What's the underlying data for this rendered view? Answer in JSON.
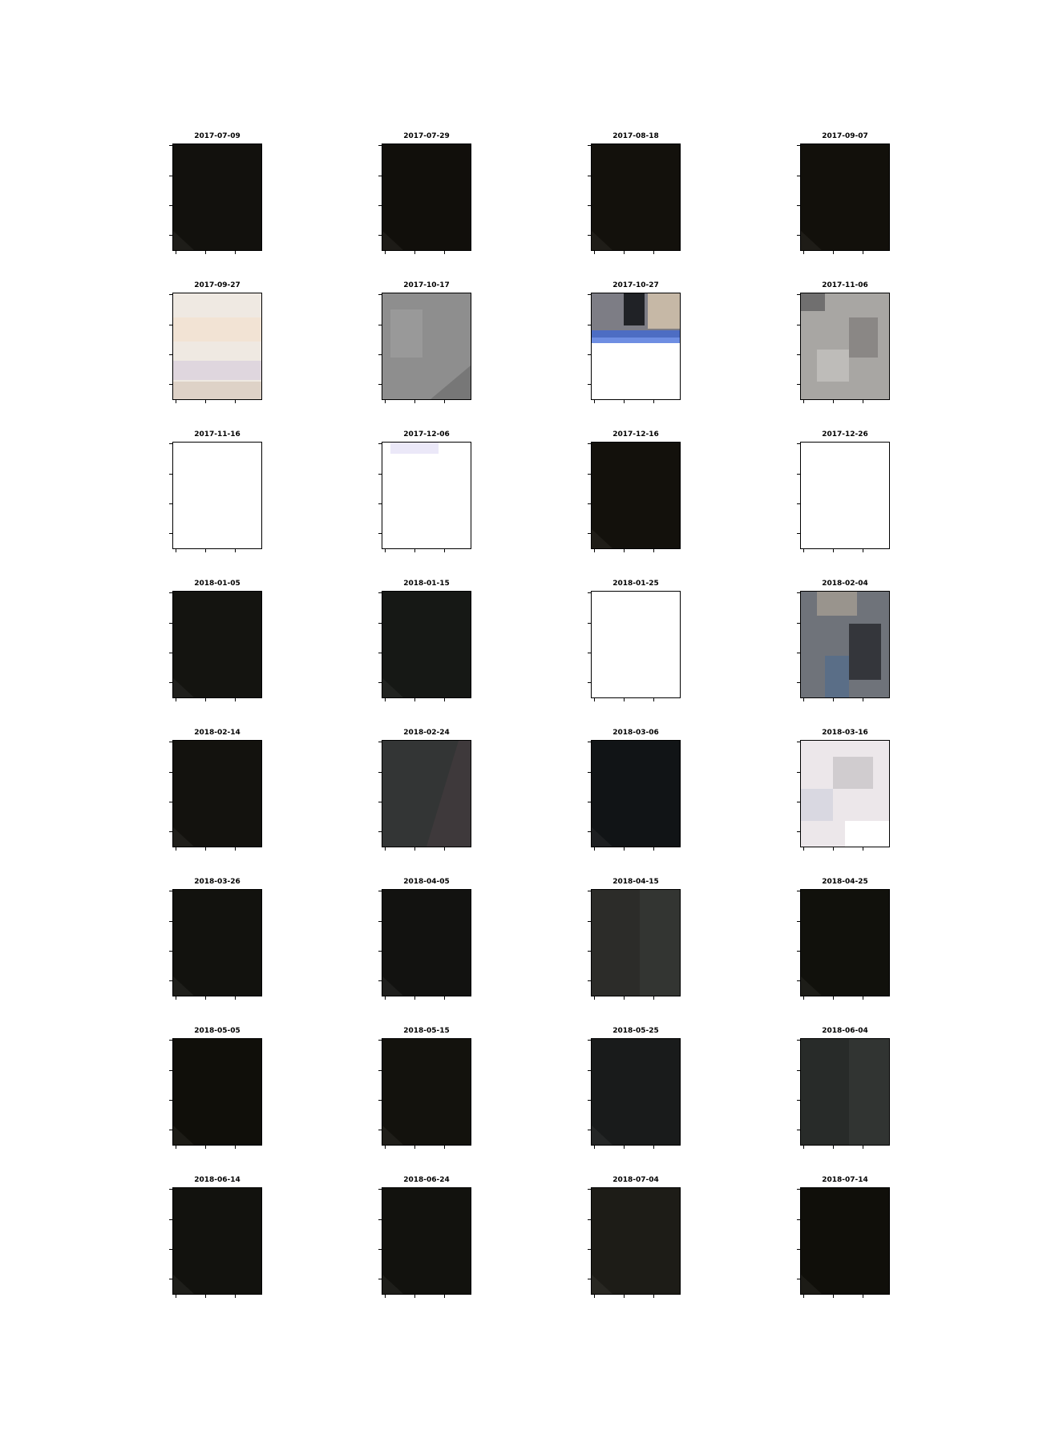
{
  "panels": [
    {
      "title": "2017-07-09",
      "tone": "#12110d",
      "style": "dark"
    },
    {
      "title": "2017-07-29",
      "tone": "#110f0b",
      "style": "dark"
    },
    {
      "title": "2017-08-18",
      "tone": "#13110c",
      "style": "dark"
    },
    {
      "title": "2017-09-07",
      "tone": "#12100b",
      "style": "dark"
    },
    {
      "title": "2017-09-27",
      "tone": "#efe9e2",
      "style": "haze"
    },
    {
      "title": "2017-10-17",
      "tone": "#8e8e8e",
      "style": "grey"
    },
    {
      "title": "2017-10-27",
      "tone": "#7d7d85",
      "style": "cloudband"
    },
    {
      "title": "2017-11-06",
      "tone": "#a8a6a3",
      "style": "mottled"
    },
    {
      "title": "2017-11-16",
      "tone": "#ffffff",
      "style": "white"
    },
    {
      "title": "2017-12-06",
      "tone": "#ffffff",
      "style": "white-tint"
    },
    {
      "title": "2017-12-16",
      "tone": "#13110c",
      "style": "dark"
    },
    {
      "title": "2017-12-26",
      "tone": "#ffffff",
      "style": "white"
    },
    {
      "title": "2018-01-05",
      "tone": "#141410",
      "style": "dark"
    },
    {
      "title": "2018-01-15",
      "tone": "#161815",
      "style": "dark"
    },
    {
      "title": "2018-01-25",
      "tone": "#ffffff",
      "style": "white"
    },
    {
      "title": "2018-02-04",
      "tone": "#6f737a",
      "style": "mottled-dark"
    },
    {
      "title": "2018-02-14",
      "tone": "#13120e",
      "style": "dark"
    },
    {
      "title": "2018-02-24",
      "tone": "#333535",
      "style": "darkgrey"
    },
    {
      "title": "2018-03-06",
      "tone": "#111416",
      "style": "dark"
    },
    {
      "title": "2018-03-16",
      "tone": "#ece7ea",
      "style": "haze-light"
    },
    {
      "title": "2018-03-26",
      "tone": "#12120e",
      "style": "dark"
    },
    {
      "title": "2018-04-05",
      "tone": "#121210",
      "style": "dark"
    },
    {
      "title": "2018-04-15",
      "tone": "#2c2c29",
      "style": "flatgrey"
    },
    {
      "title": "2018-04-25",
      "tone": "#11110c",
      "style": "dark"
    },
    {
      "title": "2018-05-05",
      "tone": "#100f0a",
      "style": "dark"
    },
    {
      "title": "2018-05-15",
      "tone": "#13120d",
      "style": "dark"
    },
    {
      "title": "2018-05-25",
      "tone": "#191b1b",
      "style": "dark"
    },
    {
      "title": "2018-06-04",
      "tone": "#282b29",
      "style": "flatgrey"
    },
    {
      "title": "2018-06-14",
      "tone": "#12120e",
      "style": "dark"
    },
    {
      "title": "2018-06-24",
      "tone": "#12120e",
      "style": "dark"
    },
    {
      "title": "2018-07-04",
      "tone": "#1d1c17",
      "style": "dark"
    },
    {
      "title": "2018-07-14",
      "tone": "#100f0a",
      "style": "dark"
    }
  ]
}
